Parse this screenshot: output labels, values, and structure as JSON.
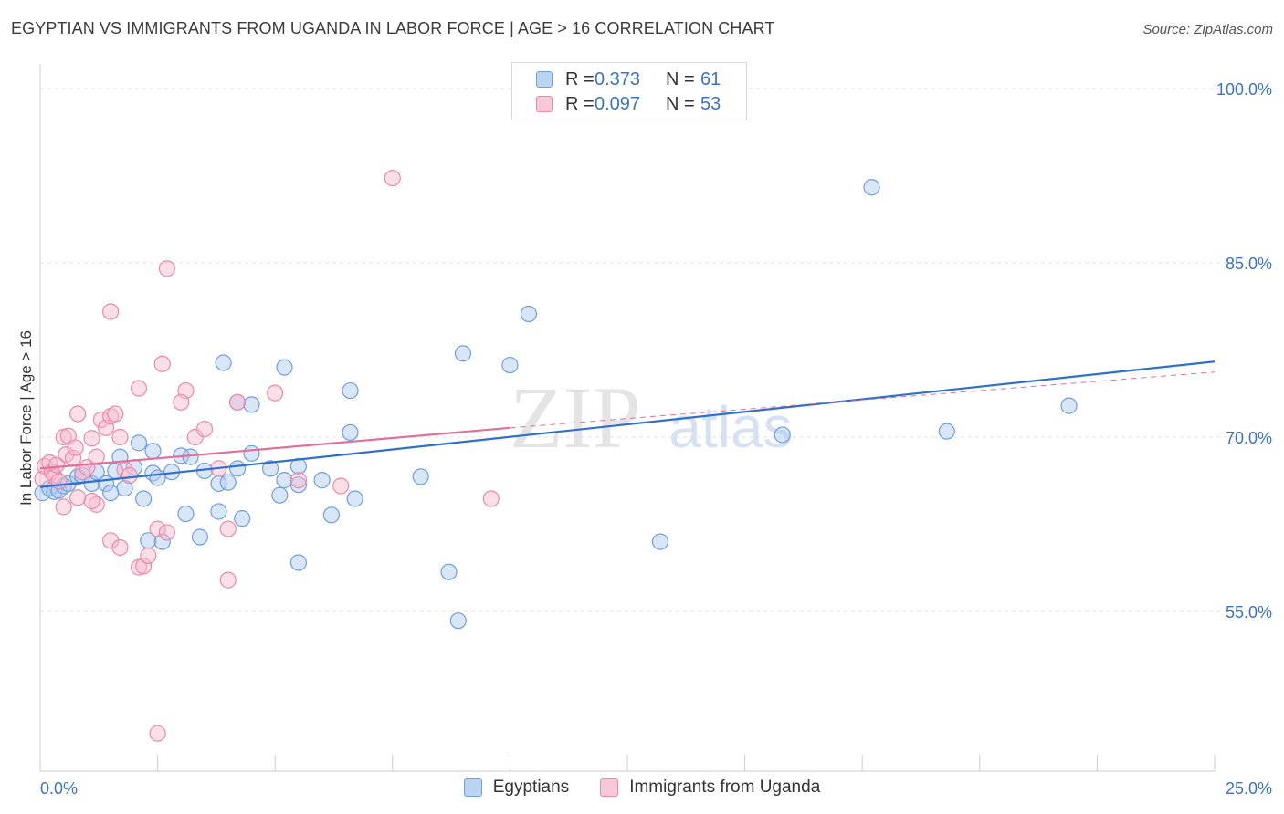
{
  "title": "EGYPTIAN VS IMMIGRANTS FROM UGANDA IN LABOR FORCE | AGE > 16 CORRELATION CHART",
  "source": "Source: ZipAtlas.com",
  "watermark": {
    "zip": "ZIP",
    "atlas": "atlas"
  },
  "legend": {
    "r_label": "R =",
    "n_label": "N =",
    "rows": [
      {
        "r": "0.373",
        "n": "61"
      },
      {
        "r": "0.097",
        "n": "53"
      }
    ]
  },
  "colors": {
    "egyptians_fill": "#aac8f0",
    "egyptians_stroke": "#6f9fdc",
    "egyptians_line": "#2f6fcf",
    "uganda_fill": "#f7b8cc",
    "uganda_stroke": "#ea8aa8",
    "uganda_line": "#e0709a",
    "axis_text": "#3a74c8",
    "grid": "#e2e2e2"
  },
  "chart_data": {
    "type": "scatter",
    "title": "EGYPTIAN VS IMMIGRANTS FROM UGANDA IN LABOR FORCE | AGE > 16 CORRELATION CHART",
    "xlabel": "",
    "ylabel": "In Labor Force | Age > 16",
    "xlim": [
      0,
      25
    ],
    "ylim": [
      41,
      102
    ],
    "x_tick_labels": [
      "0.0%",
      "25.0%"
    ],
    "y_ticks": [
      55,
      70,
      85,
      100
    ],
    "y_tick_labels": [
      "55.0%",
      "70.0%",
      "85.0%",
      "100.0%"
    ],
    "grid": true,
    "legend_position": "top-center",
    "series": [
      {
        "name": "Egyptians",
        "r": 0.373,
        "n": 61,
        "trend": {
          "x": [
            0,
            25
          ],
          "y": [
            65.7,
            76.5
          ]
        },
        "points": [
          [
            0.05,
            65.2
          ],
          [
            0.2,
            65.6
          ],
          [
            0.3,
            65.3
          ],
          [
            0.4,
            65.4
          ],
          [
            0.5,
            65.8
          ],
          [
            0.6,
            66.0
          ],
          [
            0.8,
            66.6
          ],
          [
            0.9,
            66.7
          ],
          [
            1.1,
            66.0
          ],
          [
            1.2,
            67.0
          ],
          [
            1.4,
            66.0
          ],
          [
            1.5,
            65.2
          ],
          [
            1.6,
            67.1
          ],
          [
            1.7,
            68.3
          ],
          [
            1.8,
            65.6
          ],
          [
            2.0,
            67.4
          ],
          [
            2.2,
            64.7
          ],
          [
            2.4,
            66.9
          ],
          [
            2.4,
            68.8
          ],
          [
            2.5,
            66.5
          ],
          [
            2.8,
            67.0
          ],
          [
            3.0,
            68.4
          ],
          [
            3.2,
            68.3
          ],
          [
            3.5,
            67.1
          ],
          [
            3.8,
            66.0
          ],
          [
            4.0,
            66.1
          ],
          [
            4.2,
            67.3
          ],
          [
            4.5,
            68.6
          ],
          [
            4.9,
            67.3
          ],
          [
            5.2,
            66.3
          ],
          [
            5.5,
            65.9
          ],
          [
            5.5,
            67.5
          ],
          [
            6.0,
            66.3
          ],
          [
            6.2,
            63.3
          ],
          [
            6.6,
            70.4
          ],
          [
            6.7,
            64.7
          ],
          [
            2.1,
            69.5
          ],
          [
            2.3,
            61.1
          ],
          [
            2.6,
            61.0
          ],
          [
            3.1,
            63.4
          ],
          [
            3.4,
            61.4
          ],
          [
            3.8,
            63.6
          ],
          [
            3.9,
            76.4
          ],
          [
            4.2,
            73.0
          ],
          [
            4.3,
            63.0
          ],
          [
            4.5,
            72.8
          ],
          [
            5.1,
            65.0
          ],
          [
            5.2,
            76.0
          ],
          [
            5.5,
            59.2
          ],
          [
            6.6,
            74.0
          ],
          [
            8.1,
            66.6
          ],
          [
            8.7,
            58.4
          ],
          [
            9.0,
            77.2
          ],
          [
            10.0,
            76.2
          ],
          [
            10.4,
            80.6
          ],
          [
            13.2,
            61.0
          ],
          [
            15.8,
            70.2
          ],
          [
            17.7,
            91.5
          ],
          [
            19.3,
            70.5
          ],
          [
            21.9,
            72.7
          ],
          [
            8.9,
            54.2
          ]
        ]
      },
      {
        "name": "Immigrants from Uganda",
        "r": 0.097,
        "n": 53,
        "trend": {
          "x": [
            0,
            10
          ],
          "y": [
            67.3,
            70.8
          ]
        },
        "trend_extended": {
          "x": [
            10,
            25
          ],
          "y": [
            70.8,
            75.6
          ]
        },
        "points": [
          [
            0.05,
            66.4
          ],
          [
            0.1,
            67.5
          ],
          [
            0.2,
            67.8
          ],
          [
            0.25,
            67.0
          ],
          [
            0.3,
            66.6
          ],
          [
            0.35,
            67.6
          ],
          [
            0.4,
            66.2
          ],
          [
            0.5,
            70.0
          ],
          [
            0.55,
            68.5
          ],
          [
            0.6,
            70.1
          ],
          [
            0.7,
            68.2
          ],
          [
            0.75,
            69.1
          ],
          [
            0.8,
            72.0
          ],
          [
            0.9,
            67.0
          ],
          [
            1.0,
            67.4
          ],
          [
            1.1,
            69.9
          ],
          [
            1.2,
            68.3
          ],
          [
            1.3,
            71.5
          ],
          [
            1.4,
            70.8
          ],
          [
            1.5,
            71.8
          ],
          [
            1.6,
            72.0
          ],
          [
            1.7,
            70.0
          ],
          [
            1.8,
            67.2
          ],
          [
            1.9,
            66.7
          ],
          [
            2.1,
            74.2
          ],
          [
            2.6,
            76.3
          ],
          [
            2.7,
            84.5
          ],
          [
            1.5,
            80.8
          ],
          [
            0.5,
            64.0
          ],
          [
            1.2,
            64.2
          ],
          [
            1.1,
            64.5
          ],
          [
            0.8,
            64.8
          ],
          [
            1.5,
            61.1
          ],
          [
            1.7,
            60.5
          ],
          [
            2.1,
            58.8
          ],
          [
            2.2,
            58.9
          ],
          [
            2.3,
            59.8
          ],
          [
            2.5,
            62.1
          ],
          [
            2.7,
            61.8
          ],
          [
            3.1,
            74.0
          ],
          [
            3.0,
            73.0
          ],
          [
            3.3,
            70.0
          ],
          [
            3.5,
            70.7
          ],
          [
            3.8,
            67.3
          ],
          [
            4.0,
            62.1
          ],
          [
            4.2,
            73.0
          ],
          [
            4.0,
            57.7
          ],
          [
            5.0,
            73.8
          ],
          [
            5.5,
            66.3
          ],
          [
            6.4,
            65.8
          ],
          [
            7.5,
            92.3
          ],
          [
            9.6,
            64.7
          ],
          [
            2.5,
            44.5
          ]
        ]
      }
    ]
  },
  "bottom_legend": [
    "Egyptians",
    "Immigrants from Uganda"
  ]
}
